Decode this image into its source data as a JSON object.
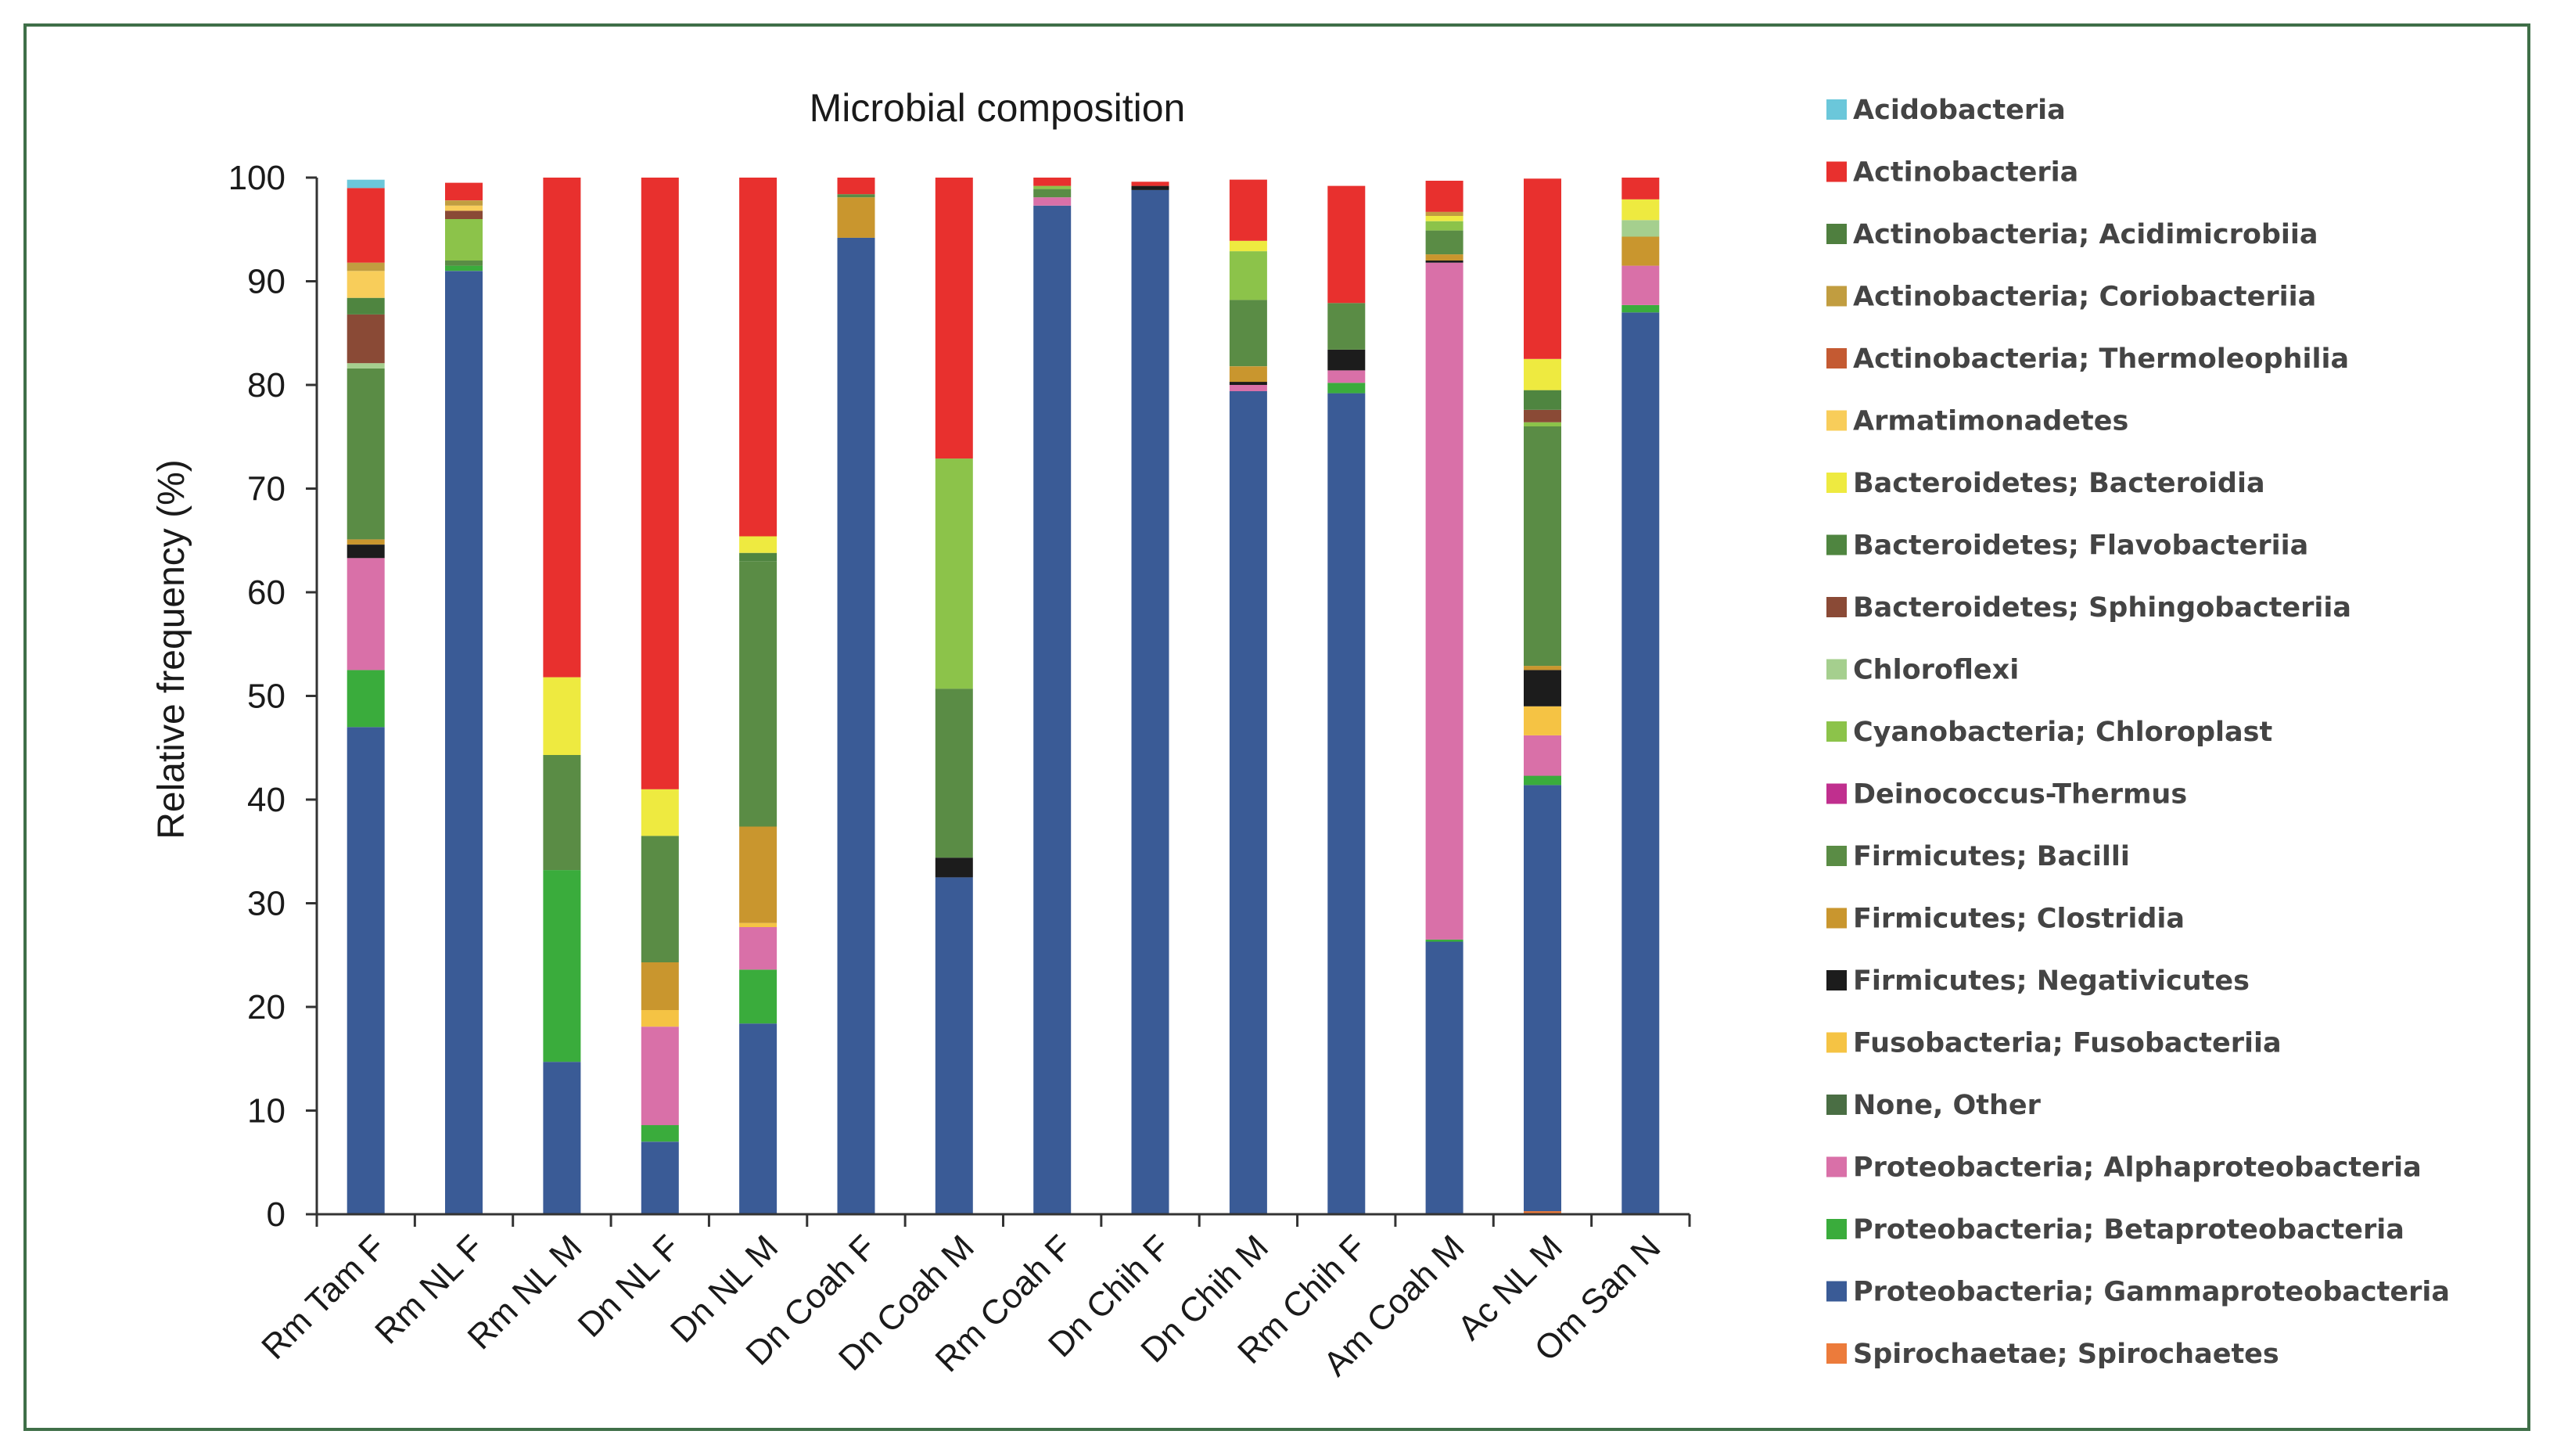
{
  "chart_data": {
    "type": "bar",
    "stacked": true,
    "title": "Microbial composition",
    "xlabel": "",
    "ylabel": "Relative frequency (%)",
    "ylim": [
      0,
      100
    ],
    "yticks": [
      0,
      10,
      20,
      30,
      40,
      50,
      60,
      70,
      80,
      90,
      100
    ],
    "legend_position": "right",
    "categories": [
      "Rm Tam F",
      "Rm NL F",
      "Rm NL M",
      "Dn NL F",
      "Dn NL M",
      "Dn Coah F",
      "Dn Coah M",
      "Rm Coah F",
      "Dn Chih F",
      "Dn Chih M",
      "Rm Chih F",
      "Am Coah M",
      "Ac NL M",
      "Om San N"
    ],
    "series": [
      {
        "name": "Spirochaetae; Spirochaetes",
        "color": "#ec7b3b",
        "values": [
          0,
          0,
          0,
          0,
          0,
          0,
          0,
          0,
          0,
          0,
          0,
          0,
          0.3,
          0
        ]
      },
      {
        "name": "Proteobacteria; Gammaproteobacteria",
        "color": "#3a5b96",
        "values": [
          47,
          91,
          14.7,
          7,
          18.4,
          94.2,
          32.5,
          97.3,
          98.8,
          79.4,
          79.2,
          26.3,
          41.1,
          87
        ]
      },
      {
        "name": "Proteobacteria; Betaproteobacteria",
        "color": "#3aac3c",
        "values": [
          5.5,
          0.5,
          18.5,
          1.6,
          5.2,
          0,
          0,
          0,
          0,
          0,
          1,
          0.2,
          0.9,
          0.7
        ]
      },
      {
        "name": "Proteobacteria; Alphaproteobacteria",
        "color": "#d970a8",
        "values": [
          10.8,
          0,
          0,
          9.5,
          4.1,
          0,
          0,
          0.8,
          0,
          0.6,
          1.2,
          65.3,
          3.9,
          3.8
        ]
      },
      {
        "name": "None, Other",
        "color": "#4a6e44",
        "values": [
          0,
          0,
          0,
          0,
          0,
          0,
          0,
          0,
          0,
          0,
          0,
          0,
          0,
          0
        ]
      },
      {
        "name": "Fusobacteria; Fusobacteriia",
        "color": "#f5c344",
        "values": [
          0,
          0,
          0,
          1.6,
          0.4,
          0,
          0,
          0,
          0,
          0,
          0,
          0,
          2.8,
          0
        ]
      },
      {
        "name": "Firmicutes; Negativicutes",
        "color": "#1c1c1c",
        "values": [
          1.3,
          0,
          0,
          0,
          0,
          0,
          1.9,
          0,
          0.4,
          0.3,
          2,
          0.2,
          3.5,
          0
        ]
      },
      {
        "name": "Firmicutes; Clostridia",
        "color": "#c9962e",
        "values": [
          0.5,
          0,
          0,
          4.6,
          9.3,
          3.9,
          0,
          0,
          0,
          1.5,
          0,
          0.6,
          0.4,
          2.8
        ]
      },
      {
        "name": "Firmicutes; Bacilli",
        "color": "#5a8c45",
        "values": [
          16.5,
          0.5,
          11.1,
          12.2,
          25.6,
          0.3,
          16.3,
          0.8,
          0,
          6.4,
          4.5,
          2.3,
          23.1,
          0
        ]
      },
      {
        "name": "Deinococcus-Thermus",
        "color": "#c02f8e",
        "values": [
          0,
          0,
          0,
          0,
          0,
          0,
          0,
          0,
          0,
          0,
          0,
          0,
          0,
          0
        ]
      },
      {
        "name": "Cyanobacteria; Chloroplast",
        "color": "#8cc34a",
        "values": [
          0,
          4,
          0,
          0,
          0,
          0,
          22.2,
          0.3,
          0,
          4.7,
          0,
          0.9,
          0.4,
          0
        ]
      },
      {
        "name": "Chloroflexi",
        "color": "#a5cf8e",
        "values": [
          0.5,
          0,
          0,
          0,
          0,
          0,
          0,
          0,
          0,
          0,
          0,
          0,
          0,
          1.6
        ]
      },
      {
        "name": "Bacteroidetes; Sphingobacteriia",
        "color": "#8a4a36",
        "values": [
          4.7,
          0.8,
          0,
          0,
          0,
          0,
          0,
          0,
          0,
          0,
          0,
          0,
          1.2,
          0
        ]
      },
      {
        "name": "Bacteroidetes; Flavobacteriia",
        "color": "#4f8540",
        "values": [
          1.6,
          0,
          0,
          0,
          0.8,
          0,
          0,
          0,
          0,
          0,
          0,
          0,
          1.9,
          0
        ]
      },
      {
        "name": "Bacteroidetes; Bacteroidia",
        "color": "#eeea40",
        "values": [
          0,
          0,
          7.5,
          4.5,
          1.6,
          0,
          0,
          0,
          0,
          1,
          0,
          0.5,
          3,
          2
        ]
      },
      {
        "name": "Armatimonadetes",
        "color": "#f8cd5a",
        "values": [
          2.6,
          0.5,
          0,
          0,
          0,
          0,
          0,
          0,
          0,
          0,
          0,
          0,
          0,
          0
        ]
      },
      {
        "name": "Actinobacteria; Thermoleophilia",
        "color": "#c45a32",
        "values": [
          0,
          0,
          0,
          0,
          0,
          0,
          0,
          0,
          0,
          0,
          0,
          0,
          0,
          0
        ]
      },
      {
        "name": "Actinobacteria; Coriobacteriia",
        "color": "#c19d40",
        "values": [
          0.8,
          0.5,
          0,
          0,
          0,
          0,
          0,
          0,
          0,
          0,
          0,
          0.4,
          0,
          0
        ]
      },
      {
        "name": "Actinobacteria; Acidimicrobiia",
        "color": "#4f7f3f",
        "values": [
          0,
          0,
          0,
          0,
          0,
          0,
          0,
          0,
          0,
          0,
          0,
          0,
          0,
          0
        ]
      },
      {
        "name": "Actinobacteria",
        "color": "#e8302e",
        "values": [
          7.2,
          1.7,
          48.2,
          59,
          34.6,
          1.6,
          27.1,
          0.8,
          0.4,
          5.9,
          11.3,
          3.0,
          17.4,
          2.1
        ]
      },
      {
        "name": "Acidobacteria",
        "color": "#6bc7da",
        "values": [
          0.8,
          0,
          0,
          0,
          0,
          0,
          0,
          0,
          0,
          0,
          0,
          0,
          0,
          0
        ]
      }
    ],
    "legend": [
      "Acidobacteria",
      "Actinobacteria",
      "Actinobacteria; Acidimicrobiia",
      "Actinobacteria; Coriobacteriia",
      "Actinobacteria; Thermoleophilia",
      "Armatimonadetes",
      "Bacteroidetes; Bacteroidia",
      "Bacteroidetes; Flavobacteriia",
      "Bacteroidetes; Sphingobacteriia",
      "Chloroflexi",
      "Cyanobacteria; Chloroplast",
      "Deinococcus-Thermus",
      "Firmicutes; Bacilli",
      "Firmicutes; Clostridia",
      "Firmicutes; Negativicutes",
      "Fusobacteria; Fusobacteriia",
      "None, Other",
      "Proteobacteria; Alphaproteobacteria",
      "Proteobacteria; Betaproteobacteria",
      "Proteobacteria; Gammaproteobacteria",
      "Spirochaetae; Spirochaetes"
    ]
  },
  "colors": {
    "frame": "#3f6f48",
    "axis": "#333333",
    "text": "#1a1a1a"
  }
}
